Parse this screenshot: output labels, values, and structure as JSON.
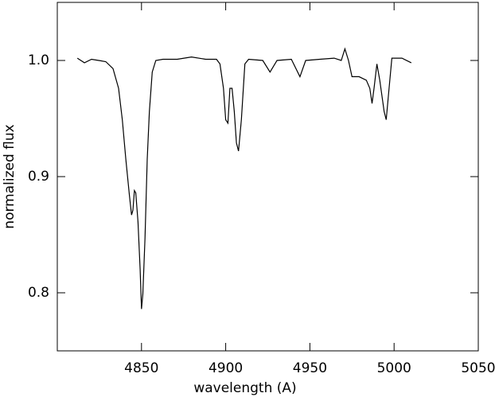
{
  "chart_data": {
    "type": "line",
    "x_label": "wavelength (A)",
    "y_label": "normalized flux",
    "xlim": [
      4800,
      5050
    ],
    "xticks": [
      4850,
      4900,
      4950,
      5000,
      5050
    ],
    "ylim": [
      0.75,
      1.05
    ],
    "yticks": [
      0.8,
      0.9,
      {
        "value": 1.0,
        "label": "1.0"
      }
    ],
    "color": "#000000",
    "x": [
      4811.9,
      4816.1,
      4820.3,
      4824.6,
      4828.8,
      4833.1,
      4836.4,
      4838.6,
      4840.7,
      4842.8,
      4844.1,
      4844.9,
      4845.8,
      4846.6,
      4847.9,
      4849.2,
      4850.0,
      4850.8,
      4852.1,
      4853.4,
      4854.7,
      4856.4,
      4858.5,
      4862.7,
      4871.2,
      4879.7,
      4888.1,
      4894.5,
      4896.6,
      4898.7,
      4900.0,
      4901.3,
      4902.5,
      4903.8,
      4905.1,
      4906.4,
      4907.6,
      4909.3,
      4911.4,
      4913.6,
      4922.0,
      4926.3,
      4930.5,
      4939.0,
      4944.1,
      4947.5,
      4955.9,
      4964.4,
      4968.6,
      4970.8,
      4972.9,
      4975.0,
      4979.2,
      4983.5,
      4985.6,
      4986.9,
      4988.1,
      4989.8,
      4991.5,
      4994.1,
      4995.3,
      4997.0,
      4998.7,
      5004.7,
      5010.2
    ],
    "values": [
      1.002,
      0.998,
      1.001,
      1.0,
      0.999,
      0.993,
      0.976,
      0.949,
      0.915,
      0.884,
      0.867,
      0.871,
      0.888,
      0.886,
      0.861,
      0.82,
      0.786,
      0.799,
      0.847,
      0.915,
      0.956,
      0.99,
      1.0,
      1.001,
      1.001,
      1.003,
      1.001,
      1.001,
      0.997,
      0.976,
      0.949,
      0.946,
      0.976,
      0.976,
      0.956,
      0.929,
      0.922,
      0.949,
      0.997,
      1.001,
      1.0,
      0.99,
      1.0,
      1.001,
      0.986,
      1.0,
      1.001,
      1.002,
      1.0,
      1.01,
      1.0,
      0.986,
      0.986,
      0.983,
      0.976,
      0.963,
      0.976,
      0.997,
      0.983,
      0.956,
      0.949,
      0.976,
      1.002,
      1.002,
      0.998
    ]
  }
}
